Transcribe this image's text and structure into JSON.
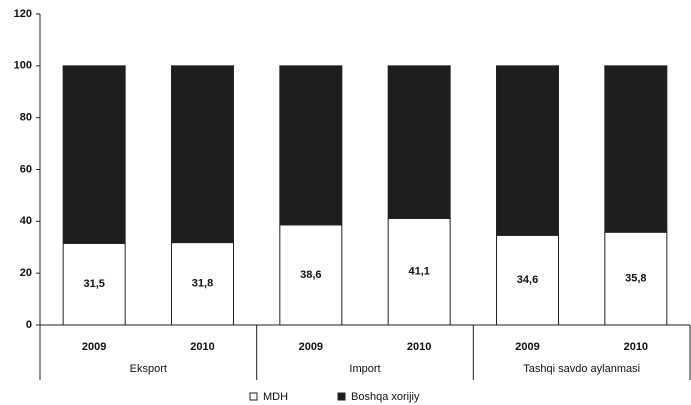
{
  "chart_data": {
    "type": "stacked-bar",
    "categories": [
      "2009",
      "2010",
      "2009",
      "2010",
      "2009",
      "2010"
    ],
    "groups": [
      "Eksport",
      "Import",
      "Tashqi savdo aylanmasi"
    ],
    "series": [
      {
        "name": "MDH",
        "color": "#ffffff",
        "values": [
          31.5,
          31.8,
          38.6,
          41.1,
          34.6,
          35.8
        ],
        "value_labels": [
          "31,5",
          "31,8",
          "38,6",
          "41,1",
          "34,6",
          "35,8"
        ]
      },
      {
        "name": "Boshqa xorijiy",
        "color": "#1e1e1e",
        "values": [
          68.5,
          68.2,
          61.4,
          58.9,
          65.4,
          64.2
        ]
      }
    ],
    "ylim": [
      0,
      120
    ],
    "yticks": [
      0,
      20,
      40,
      60,
      80,
      100,
      120
    ],
    "legend": "bottom"
  }
}
